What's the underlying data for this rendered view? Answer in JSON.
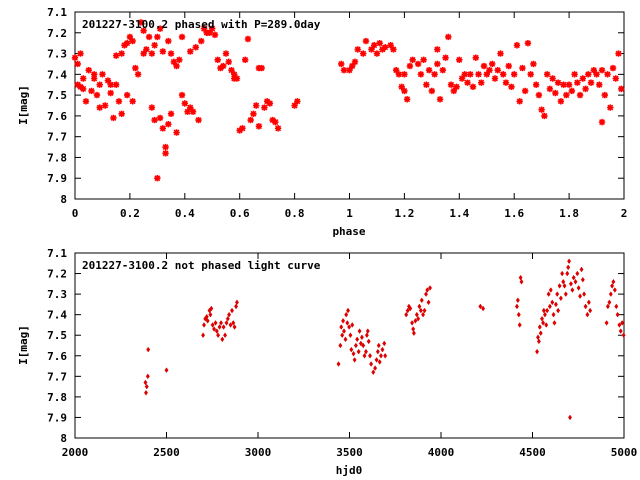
{
  "chart_data": [
    {
      "type": "scatter",
      "title": "201227-3100.2 phased with P=289.0day",
      "xlabel": "phase",
      "ylabel": "I[mag]",
      "xlim": [
        0,
        2
      ],
      "ylim": [
        8,
        7.1
      ],
      "y_inverted": true,
      "xticks": [
        "0",
        "0.2",
        "0.4",
        "0.6",
        "0.8",
        "1",
        "1.2",
        "1.4",
        "1.6",
        "1.8",
        "2"
      ],
      "yticks": [
        "7.1",
        "7.2",
        "7.3",
        "7.4",
        "7.5",
        "7.6",
        "7.7",
        "7.8",
        "7.9",
        "8"
      ],
      "marker": "star",
      "color": "#ff0000",
      "points": [
        [
          0.0,
          7.32
        ],
        [
          0.01,
          7.45
        ],
        [
          0.01,
          7.35
        ],
        [
          0.02,
          7.3
        ],
        [
          0.02,
          7.46
        ],
        [
          0.03,
          7.47
        ],
        [
          0.03,
          7.42
        ],
        [
          0.04,
          7.53
        ],
        [
          0.05,
          7.38
        ],
        [
          0.06,
          7.48
        ],
        [
          0.07,
          7.42
        ],
        [
          0.07,
          7.4
        ],
        [
          0.08,
          7.5
        ],
        [
          0.09,
          7.56
        ],
        [
          0.09,
          7.45
        ],
        [
          0.1,
          7.4
        ],
        [
          0.11,
          7.55
        ],
        [
          0.12,
          7.43
        ],
        [
          0.13,
          7.49
        ],
        [
          0.13,
          7.45
        ],
        [
          0.14,
          7.61
        ],
        [
          0.15,
          7.31
        ],
        [
          0.15,
          7.45
        ],
        [
          0.16,
          7.53
        ],
        [
          0.17,
          7.3
        ],
        [
          0.17,
          7.59
        ],
        [
          0.18,
          7.26
        ],
        [
          0.19,
          7.25
        ],
        [
          0.19,
          7.5
        ],
        [
          0.2,
          7.22
        ],
        [
          0.21,
          7.24
        ],
        [
          0.21,
          7.53
        ],
        [
          0.22,
          7.37
        ],
        [
          0.23,
          7.4
        ],
        [
          0.24,
          7.15
        ],
        [
          0.25,
          7.19
        ],
        [
          0.25,
          7.3
        ],
        [
          0.26,
          7.28
        ],
        [
          0.27,
          7.22
        ],
        [
          0.28,
          7.3
        ],
        [
          0.28,
          7.56
        ],
        [
          0.29,
          7.26
        ],
        [
          0.29,
          7.62
        ],
        [
          0.3,
          7.9
        ],
        [
          0.3,
          7.22
        ],
        [
          0.31,
          7.61
        ],
        [
          0.31,
          7.18
        ],
        [
          0.32,
          7.29
        ],
        [
          0.32,
          7.66
        ],
        [
          0.33,
          7.75
        ],
        [
          0.33,
          7.78
        ],
        [
          0.34,
          7.64
        ],
        [
          0.34,
          7.24
        ],
        [
          0.35,
          7.59
        ],
        [
          0.35,
          7.3
        ],
        [
          0.36,
          7.34
        ],
        [
          0.37,
          7.68
        ],
        [
          0.37,
          7.36
        ],
        [
          0.38,
          7.33
        ],
        [
          0.39,
          7.5
        ],
        [
          0.39,
          7.22
        ],
        [
          0.4,
          7.54
        ],
        [
          0.41,
          7.58
        ],
        [
          0.42,
          7.29
        ],
        [
          0.42,
          7.56
        ],
        [
          0.43,
          7.58
        ],
        [
          0.44,
          7.27
        ],
        [
          0.45,
          7.62
        ],
        [
          0.46,
          7.24
        ],
        [
          0.47,
          7.18
        ],
        [
          0.48,
          7.2
        ],
        [
          0.49,
          7.2
        ],
        [
          0.5,
          7.18
        ],
        [
          0.51,
          7.21
        ],
        [
          0.52,
          7.33
        ],
        [
          0.53,
          7.37
        ],
        [
          0.54,
          7.36
        ],
        [
          0.55,
          7.3
        ],
        [
          0.56,
          7.34
        ],
        [
          0.57,
          7.38
        ],
        [
          0.58,
          7.42
        ],
        [
          0.58,
          7.4
        ],
        [
          0.59,
          7.42
        ],
        [
          0.6,
          7.67
        ],
        [
          0.61,
          7.66
        ],
        [
          0.62,
          7.33
        ],
        [
          0.63,
          7.23
        ],
        [
          0.64,
          7.62
        ],
        [
          0.65,
          7.59
        ],
        [
          0.66,
          7.55
        ],
        [
          0.67,
          7.65
        ],
        [
          0.67,
          7.37
        ],
        [
          0.68,
          7.37
        ],
        [
          0.69,
          7.56
        ],
        [
          0.7,
          7.53
        ],
        [
          0.71,
          7.54
        ],
        [
          0.72,
          7.62
        ],
        [
          0.73,
          7.63
        ],
        [
          0.74,
          7.66
        ],
        [
          0.8,
          7.55
        ],
        [
          0.81,
          7.53
        ],
        [
          0.97,
          7.35
        ],
        [
          0.98,
          7.38
        ],
        [
          1.0,
          7.38
        ],
        [
          1.01,
          7.36
        ],
        [
          1.02,
          7.34
        ],
        [
          1.03,
          7.28
        ],
        [
          1.05,
          7.3
        ],
        [
          1.06,
          7.24
        ],
        [
          1.08,
          7.28
        ],
        [
          1.09,
          7.26
        ],
        [
          1.1,
          7.3
        ],
        [
          1.11,
          7.25
        ],
        [
          1.12,
          7.28
        ],
        [
          1.13,
          7.27
        ],
        [
          1.15,
          7.26
        ],
        [
          1.16,
          7.28
        ],
        [
          1.17,
          7.38
        ],
        [
          1.18,
          7.4
        ],
        [
          1.19,
          7.46
        ],
        [
          1.2,
          7.48
        ],
        [
          1.2,
          7.4
        ],
        [
          1.21,
          7.52
        ],
        [
          1.22,
          7.36
        ],
        [
          1.23,
          7.33
        ],
        [
          1.25,
          7.35
        ],
        [
          1.26,
          7.4
        ],
        [
          1.27,
          7.33
        ],
        [
          1.28,
          7.45
        ],
        [
          1.29,
          7.38
        ],
        [
          1.3,
          7.48
        ],
        [
          1.31,
          7.4
        ],
        [
          1.32,
          7.35
        ],
        [
          1.32,
          7.28
        ],
        [
          1.33,
          7.52
        ],
        [
          1.34,
          7.38
        ],
        [
          1.35,
          7.32
        ],
        [
          1.36,
          7.22
        ],
        [
          1.37,
          7.45
        ],
        [
          1.38,
          7.48
        ],
        [
          1.39,
          7.46
        ],
        [
          1.4,
          7.33
        ],
        [
          1.41,
          7.42
        ],
        [
          1.42,
          7.4
        ],
        [
          1.43,
          7.44
        ],
        [
          1.44,
          7.4
        ],
        [
          1.45,
          7.46
        ],
        [
          1.46,
          7.32
        ],
        [
          1.47,
          7.4
        ],
        [
          1.48,
          7.44
        ],
        [
          1.49,
          7.36
        ],
        [
          1.5,
          7.4
        ],
        [
          1.51,
          7.38
        ],
        [
          1.52,
          7.35
        ],
        [
          1.53,
          7.42
        ],
        [
          1.54,
          7.38
        ],
        [
          1.55,
          7.3
        ],
        [
          1.56,
          7.4
        ],
        [
          1.57,
          7.44
        ],
        [
          1.58,
          7.36
        ],
        [
          1.59,
          7.46
        ],
        [
          1.6,
          7.4
        ],
        [
          1.61,
          7.26
        ],
        [
          1.62,
          7.53
        ],
        [
          1.63,
          7.37
        ],
        [
          1.64,
          7.48
        ],
        [
          1.65,
          7.25
        ],
        [
          1.66,
          7.4
        ],
        [
          1.67,
          7.35
        ],
        [
          1.68,
          7.45
        ],
        [
          1.69,
          7.5
        ],
        [
          1.7,
          7.57
        ],
        [
          1.71,
          7.6
        ],
        [
          1.72,
          7.4
        ],
        [
          1.73,
          7.47
        ],
        [
          1.74,
          7.42
        ],
        [
          1.75,
          7.49
        ],
        [
          1.76,
          7.44
        ],
        [
          1.77,
          7.53
        ],
        [
          1.78,
          7.45
        ],
        [
          1.79,
          7.5
        ],
        [
          1.8,
          7.45
        ],
        [
          1.81,
          7.48
        ],
        [
          1.82,
          7.4
        ],
        [
          1.83,
          7.44
        ],
        [
          1.84,
          7.5
        ],
        [
          1.85,
          7.42
        ],
        [
          1.86,
          7.47
        ],
        [
          1.87,
          7.4
        ],
        [
          1.88,
          7.44
        ],
        [
          1.89,
          7.38
        ],
        [
          1.9,
          7.4
        ],
        [
          1.91,
          7.45
        ],
        [
          1.92,
          7.63
        ],
        [
          1.92,
          7.38
        ],
        [
          1.93,
          7.5
        ],
        [
          1.94,
          7.4
        ],
        [
          1.95,
          7.56
        ],
        [
          1.96,
          7.37
        ],
        [
          1.97,
          7.42
        ],
        [
          1.98,
          7.3
        ],
        [
          1.99,
          7.47
        ]
      ]
    },
    {
      "type": "scatter",
      "title": "201227-3100.2 not phased light curve",
      "xlabel": "hjd0",
      "ylabel": "I[mag]",
      "xlim": [
        2000,
        5000
      ],
      "ylim": [
        8,
        7.1
      ],
      "y_inverted": true,
      "xticks": [
        "2000",
        "2500",
        "3000",
        "3500",
        "4000",
        "4500",
        "5000"
      ],
      "yticks": [
        "7.1",
        "7.2",
        "7.3",
        "7.4",
        "7.5",
        "7.6",
        "7.7",
        "7.8",
        "7.9",
        "8"
      ],
      "marker": "diamond",
      "color": "#dd0000",
      "points": [
        [
          2385,
          7.73
        ],
        [
          2388,
          7.78
        ],
        [
          2392,
          7.75
        ],
        [
          2398,
          7.7
        ],
        [
          2400,
          7.57
        ],
        [
          2500,
          7.67
        ],
        [
          2700,
          7.5
        ],
        [
          2705,
          7.45
        ],
        [
          2712,
          7.42
        ],
        [
          2720,
          7.41
        ],
        [
          2725,
          7.43
        ],
        [
          2735,
          7.38
        ],
        [
          2740,
          7.4
        ],
        [
          2745,
          7.37
        ],
        [
          2752,
          7.45
        ],
        [
          2760,
          7.47
        ],
        [
          2768,
          7.44
        ],
        [
          2775,
          7.48
        ],
        [
          2782,
          7.5
        ],
        [
          2790,
          7.46
        ],
        [
          2798,
          7.44
        ],
        [
          2805,
          7.52
        ],
        [
          2812,
          7.46
        ],
        [
          2820,
          7.5
        ],
        [
          2828,
          7.44
        ],
        [
          2835,
          7.42
        ],
        [
          2842,
          7.4
        ],
        [
          2850,
          7.45
        ],
        [
          2858,
          7.38
        ],
        [
          2865,
          7.44
        ],
        [
          2872,
          7.46
        ],
        [
          2880,
          7.36
        ],
        [
          2885,
          7.34
        ],
        [
          3440,
          7.64
        ],
        [
          3450,
          7.55
        ],
        [
          3455,
          7.46
        ],
        [
          3460,
          7.5
        ],
        [
          3465,
          7.43
        ],
        [
          3470,
          7.48
        ],
        [
          3478,
          7.52
        ],
        [
          3482,
          7.4
        ],
        [
          3488,
          7.44
        ],
        [
          3492,
          7.38
        ],
        [
          3498,
          7.46
        ],
        [
          3505,
          7.5
        ],
        [
          3510,
          7.57
        ],
        [
          3515,
          7.45
        ],
        [
          3522,
          7.59
        ],
        [
          3528,
          7.62
        ],
        [
          3535,
          7.55
        ],
        [
          3542,
          7.52
        ],
        [
          3550,
          7.58
        ],
        [
          3555,
          7.48
        ],
        [
          3562,
          7.54
        ],
        [
          3568,
          7.51
        ],
        [
          3575,
          7.55
        ],
        [
          3582,
          7.6
        ],
        [
          3590,
          7.58
        ],
        [
          3595,
          7.5
        ],
        [
          3600,
          7.48
        ],
        [
          3605,
          7.53
        ],
        [
          3612,
          7.6
        ],
        [
          3618,
          7.64
        ],
        [
          3630,
          7.68
        ],
        [
          3640,
          7.66
        ],
        [
          3648,
          7.62
        ],
        [
          3655,
          7.58
        ],
        [
          3660,
          7.55
        ],
        [
          3665,
          7.63
        ],
        [
          3672,
          7.6
        ],
        [
          3680,
          7.57
        ],
        [
          3690,
          7.54
        ],
        [
          3695,
          7.6
        ],
        [
          3810,
          7.4
        ],
        [
          3818,
          7.38
        ],
        [
          3825,
          7.36
        ],
        [
          3832,
          7.37
        ],
        [
          3842,
          7.44
        ],
        [
          3848,
          7.47
        ],
        [
          3852,
          7.49
        ],
        [
          3860,
          7.43
        ],
        [
          3868,
          7.4
        ],
        [
          3875,
          7.42
        ],
        [
          3882,
          7.36
        ],
        [
          3890,
          7.38
        ],
        [
          3895,
          7.33
        ],
        [
          3902,
          7.4
        ],
        [
          3910,
          7.38
        ],
        [
          3918,
          7.3
        ],
        [
          3925,
          7.28
        ],
        [
          3932,
          7.34
        ],
        [
          3940,
          7.27
        ],
        [
          4215,
          7.36
        ],
        [
          4230,
          7.37
        ],
        [
          4415,
          7.36
        ],
        [
          4420,
          7.33
        ],
        [
          4425,
          7.4
        ],
        [
          4430,
          7.45
        ],
        [
          4435,
          7.22
        ],
        [
          4440,
          7.24
        ],
        [
          4525,
          7.58
        ],
        [
          4530,
          7.51
        ],
        [
          4535,
          7.53
        ],
        [
          4540,
          7.46
        ],
        [
          4545,
          7.49
        ],
        [
          4552,
          7.42
        ],
        [
          4558,
          7.44
        ],
        [
          4562,
          7.38
        ],
        [
          4568,
          7.4
        ],
        [
          4575,
          7.45
        ],
        [
          4580,
          7.38
        ],
        [
          4588,
          7.3
        ],
        [
          4595,
          7.36
        ],
        [
          4600,
          7.28
        ],
        [
          4608,
          7.34
        ],
        [
          4615,
          7.4
        ],
        [
          4620,
          7.44
        ],
        [
          4628,
          7.35
        ],
        [
          4635,
          7.3
        ],
        [
          4640,
          7.38
        ],
        [
          4648,
          7.26
        ],
        [
          4655,
          7.32
        ],
        [
          4662,
          7.2
        ],
        [
          4668,
          7.24
        ],
        [
          4675,
          7.26
        ],
        [
          4682,
          7.3
        ],
        [
          4690,
          7.2
        ],
        [
          4695,
          7.17
        ],
        [
          4700,
          7.14
        ],
        [
          4705,
          7.9
        ],
        [
          4710,
          7.25
        ],
        [
          4718,
          7.28
        ],
        [
          4725,
          7.22
        ],
        [
          4735,
          7.24
        ],
        [
          4745,
          7.2
        ],
        [
          4752,
          7.27
        ],
        [
          4760,
          7.31
        ],
        [
          4768,
          7.18
        ],
        [
          4775,
          7.23
        ],
        [
          4782,
          7.3
        ],
        [
          4790,
          7.36
        ],
        [
          4800,
          7.4
        ],
        [
          4808,
          7.34
        ],
        [
          4815,
          7.38
        ],
        [
          4905,
          7.44
        ],
        [
          4912,
          7.36
        ],
        [
          4920,
          7.34
        ],
        [
          4928,
          7.3
        ],
        [
          4935,
          7.26
        ],
        [
          4942,
          7.24
        ],
        [
          4950,
          7.28
        ],
        [
          4958,
          7.36
        ],
        [
          4965,
          7.4
        ],
        [
          4975,
          7.45
        ],
        [
          4982,
          7.48
        ],
        [
          4990,
          7.44
        ],
        [
          4998,
          7.5
        ]
      ]
    }
  ]
}
